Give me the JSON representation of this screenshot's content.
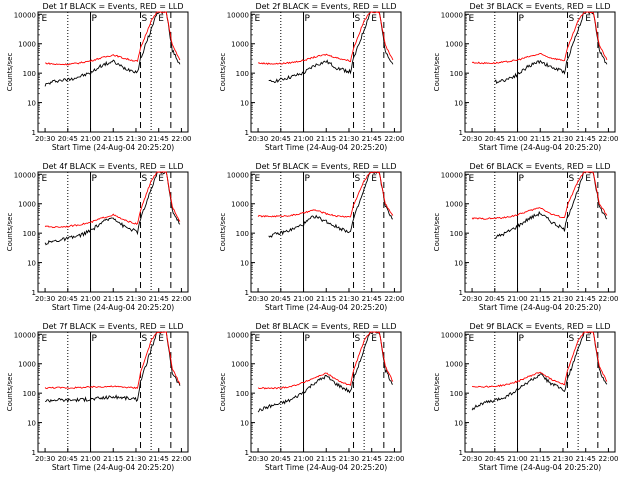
{
  "figure": {
    "xlabel": "Start Time (24-Aug-04 20:25:20)",
    "ylabel": "Counts/sec",
    "x_ticks": [
      "20:30",
      "20:45",
      "21:00",
      "21:15",
      "21:30",
      "21:45",
      "22:00"
    ],
    "y_ticks": [
      "1",
      "10",
      "100",
      "1000",
      "10000"
    ],
    "ylim": [
      1,
      12000
    ],
    "y_scale": "log",
    "xlim_minutes_after_20_25_20": [
      0,
      99
    ],
    "colors": {
      "events": "#000000",
      "lld": "#ff0000",
      "frame": "#000000"
    },
    "interval_markers": [
      "E",
      "P",
      "S",
      "E"
    ]
  },
  "chart_data": [
    {
      "type": "line",
      "title": "Det 1f BLACK = Events, RED = LLD",
      "xlabel": "Start Time (24-Aug-04 20:25:20)",
      "ylabel": "Counts/sec",
      "series": [
        {
          "name": "Events",
          "x": [
            "20:30",
            "20:37",
            "20:45",
            "20:52",
            "21:00",
            "21:07",
            "21:15",
            "21:22",
            "21:31",
            "21:33",
            "21:40",
            "21:44",
            "21:50",
            "21:54",
            "21:59"
          ],
          "values": [
            40,
            55,
            60,
            75,
            100,
            180,
            250,
            150,
            110,
            300,
            3000,
            12000,
            12000,
            600,
            200
          ]
        },
        {
          "name": "LLD",
          "x": [
            "20:30",
            "20:37",
            "20:45",
            "20:52",
            "21:00",
            "21:07",
            "21:15",
            "21:22",
            "21:31",
            "21:33",
            "21:40",
            "21:44",
            "21:50",
            "21:54",
            "21:59"
          ],
          "values": [
            220,
            200,
            200,
            220,
            260,
            330,
            420,
            320,
            250,
            700,
            6000,
            12000,
            12000,
            900,
            280
          ]
        }
      ]
    },
    {
      "type": "line",
      "title": "Det 2f BLACK = Events, RED = LLD",
      "xlabel": "Start Time (24-Aug-04 20:25:20)",
      "ylabel": "Counts/sec",
      "series": [
        {
          "name": "Events",
          "x": [
            "20:37",
            "20:45",
            "20:52",
            "21:00",
            "21:07",
            "21:15",
            "21:22",
            "21:31",
            "21:33",
            "21:40",
            "21:44",
            "21:50",
            "21:54",
            "21:59"
          ],
          "values": [
            50,
            60,
            75,
            100,
            180,
            250,
            150,
            110,
            300,
            3000,
            12000,
            12000,
            600,
            200
          ]
        },
        {
          "name": "LLD",
          "x": [
            "20:30",
            "20:37",
            "20:45",
            "20:52",
            "21:00",
            "21:07",
            "21:15",
            "21:22",
            "21:31",
            "21:33",
            "21:40",
            "21:44",
            "21:50",
            "21:54",
            "21:59"
          ],
          "values": [
            220,
            210,
            210,
            230,
            270,
            350,
            430,
            330,
            260,
            700,
            6000,
            12000,
            12000,
            900,
            280
          ]
        }
      ]
    },
    {
      "type": "line",
      "title": "Det 3f BLACK = Events, RED = LLD",
      "xlabel": "Start Time (24-Aug-04 20:25:20)",
      "ylabel": "Counts/sec",
      "series": [
        {
          "name": "Events",
          "x": [
            "20:45",
            "20:52",
            "21:00",
            "21:07",
            "21:15",
            "21:22",
            "21:31",
            "21:33",
            "21:40",
            "21:44",
            "21:50",
            "21:54",
            "21:59"
          ],
          "values": [
            50,
            60,
            90,
            170,
            260,
            160,
            110,
            300,
            3000,
            12000,
            12000,
            600,
            200
          ]
        },
        {
          "name": "LLD",
          "x": [
            "20:30",
            "20:37",
            "20:45",
            "20:52",
            "21:00",
            "21:07",
            "21:15",
            "21:22",
            "21:31",
            "21:33",
            "21:40",
            "21:44",
            "21:50",
            "21:54",
            "21:59"
          ],
          "values": [
            230,
            220,
            220,
            240,
            280,
            360,
            450,
            330,
            270,
            700,
            6000,
            12000,
            12000,
            900,
            280
          ]
        }
      ]
    },
    {
      "type": "line",
      "title": "Det 4f BLACK = Events, RED = LLD",
      "xlabel": "Start Time (24-Aug-04 20:25:20)",
      "ylabel": "Counts/sec",
      "series": [
        {
          "name": "Events",
          "x": [
            "20:30",
            "20:37",
            "20:45",
            "20:52",
            "21:00",
            "21:07",
            "21:15",
            "21:22",
            "21:31",
            "21:33",
            "21:40",
            "21:44",
            "21:50",
            "21:54",
            "21:59"
          ],
          "values": [
            45,
            55,
            65,
            80,
            120,
            220,
            350,
            170,
            110,
            300,
            3000,
            12000,
            12000,
            600,
            200
          ]
        },
        {
          "name": "LLD",
          "x": [
            "20:30",
            "20:37",
            "20:45",
            "20:52",
            "21:00",
            "21:07",
            "21:15",
            "21:22",
            "21:31",
            "21:33",
            "21:40",
            "21:44",
            "21:50",
            "21:54",
            "21:59"
          ],
          "values": [
            170,
            160,
            170,
            190,
            230,
            320,
            420,
            280,
            200,
            600,
            6000,
            12000,
            12000,
            800,
            250
          ]
        }
      ]
    },
    {
      "type": "line",
      "title": "Det 5f BLACK = Events, RED = LLD",
      "xlabel": "Start Time (24-Aug-04 20:25:20)",
      "ylabel": "Counts/sec",
      "series": [
        {
          "name": "Events",
          "x": [
            "20:37",
            "20:45",
            "20:52",
            "21:00",
            "21:07",
            "21:15",
            "21:22",
            "21:31",
            "21:33",
            "21:40",
            "21:44",
            "21:50",
            "21:54",
            "21:59"
          ],
          "values": [
            80,
            100,
            130,
            200,
            380,
            250,
            160,
            110,
            300,
            3000,
            12000,
            12000,
            800,
            300
          ]
        },
        {
          "name": "LLD",
          "x": [
            "20:30",
            "20:37",
            "20:45",
            "20:52",
            "21:00",
            "21:07",
            "21:15",
            "21:22",
            "21:31",
            "21:33",
            "21:40",
            "21:44",
            "21:50",
            "21:54",
            "21:59"
          ],
          "values": [
            380,
            370,
            380,
            400,
            480,
            620,
            460,
            380,
            360,
            900,
            6000,
            12000,
            12000,
            1000,
            400
          ]
        }
      ]
    },
    {
      "type": "line",
      "title": "Det 6f BLACK = Events, RED = LLD",
      "xlabel": "Start Time (24-Aug-04 20:25:20)",
      "ylabel": "Counts/sec",
      "series": [
        {
          "name": "Events",
          "x": [
            "20:45",
            "20:52",
            "21:00",
            "21:07",
            "21:15",
            "21:22",
            "21:31",
            "21:33",
            "21:40",
            "21:44",
            "21:50",
            "21:54",
            "21:59"
          ],
          "values": [
            70,
            100,
            170,
            300,
            480,
            250,
            130,
            350,
            3000,
            12000,
            12000,
            800,
            300
          ]
        },
        {
          "name": "LLD",
          "x": [
            "20:30",
            "20:37",
            "20:45",
            "20:52",
            "21:00",
            "21:07",
            "21:15",
            "21:22",
            "21:31",
            "21:33",
            "21:40",
            "21:44",
            "21:50",
            "21:54",
            "21:59"
          ],
          "values": [
            320,
            310,
            320,
            340,
            420,
            560,
            750,
            450,
            330,
            900,
            6000,
            12000,
            12000,
            1000,
            400
          ]
        }
      ]
    },
    {
      "type": "line",
      "title": "Det 7f BLACK = Events, RED = LLD",
      "xlabel": "Start Time (24-Aug-04 20:25:20)",
      "ylabel": "Counts/sec",
      "series": [
        {
          "name": "Events",
          "x": [
            "20:30",
            "20:37",
            "20:45",
            "20:52",
            "21:00",
            "21:07",
            "21:15",
            "21:22",
            "21:31",
            "21:33",
            "21:40",
            "21:44",
            "21:50",
            "21:54",
            "21:59"
          ],
          "values": [
            55,
            60,
            58,
            60,
            62,
            68,
            75,
            70,
            60,
            250,
            3000,
            12000,
            12000,
            500,
            180
          ]
        },
        {
          "name": "LLD",
          "x": [
            "20:30",
            "20:37",
            "20:45",
            "20:52",
            "21:00",
            "21:07",
            "21:15",
            "21:22",
            "21:31",
            "21:33",
            "21:40",
            "21:44",
            "21:50",
            "21:54",
            "21:59"
          ],
          "values": [
            150,
            155,
            150,
            155,
            160,
            165,
            170,
            160,
            150,
            500,
            6000,
            12000,
            12000,
            700,
            200
          ]
        }
      ]
    },
    {
      "type": "line",
      "title": "Det 8f BLACK = Events, RED = LLD",
      "xlabel": "Start Time (24-Aug-04 20:25:20)",
      "ylabel": "Counts/sec",
      "series": [
        {
          "name": "Events",
          "x": [
            "20:30",
            "20:37",
            "20:45",
            "20:52",
            "21:00",
            "21:07",
            "21:15",
            "21:22",
            "21:31",
            "21:33",
            "21:40",
            "21:44",
            "21:50",
            "21:54",
            "21:59"
          ],
          "values": [
            25,
            35,
            45,
            60,
            110,
            220,
            380,
            200,
            110,
            300,
            3000,
            12000,
            12000,
            600,
            200
          ]
        },
        {
          "name": "LLD",
          "x": [
            "20:30",
            "20:37",
            "20:45",
            "20:52",
            "21:00",
            "21:07",
            "21:15",
            "21:22",
            "21:31",
            "21:33",
            "21:40",
            "21:44",
            "21:50",
            "21:54",
            "21:59"
          ],
          "values": [
            150,
            145,
            150,
            170,
            230,
            330,
            480,
            280,
            180,
            600,
            6000,
            12000,
            12000,
            800,
            250
          ]
        }
      ]
    },
    {
      "type": "line",
      "title": "Det 9f BLACK = Events, RED = LLD",
      "xlabel": "Start Time (24-Aug-04 20:25:20)",
      "ylabel": "Counts/sec",
      "series": [
        {
          "name": "Events",
          "x": [
            "20:30",
            "20:37",
            "20:45",
            "20:52",
            "21:00",
            "21:07",
            "21:15",
            "21:22",
            "21:31",
            "21:33",
            "21:40",
            "21:44",
            "21:50",
            "21:54",
            "21:59"
          ],
          "values": [
            30,
            45,
            55,
            75,
            130,
            240,
            420,
            220,
            120,
            300,
            3000,
            12000,
            12000,
            600,
            200
          ]
        },
        {
          "name": "LLD",
          "x": [
            "20:30",
            "20:37",
            "20:45",
            "20:52",
            "21:00",
            "21:07",
            "21:15",
            "21:22",
            "21:31",
            "21:33",
            "21:40",
            "21:44",
            "21:50",
            "21:54",
            "21:59"
          ],
          "values": [
            170,
            165,
            170,
            190,
            250,
            360,
            520,
            300,
            200,
            600,
            6000,
            12000,
            12000,
            800,
            250
          ]
        }
      ]
    }
  ]
}
